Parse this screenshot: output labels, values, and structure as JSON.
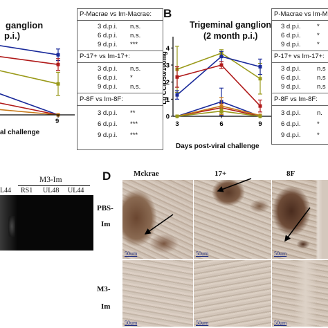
{
  "panelA": {
    "title_line1": "ganglion",
    "title_line2": "p.i.)",
    "xtick": "9",
    "xlabel": "al challenge",
    "stats": {
      "header1": "P-Macrae vs Im-Macrae:",
      "g1": [
        [
          "3 d.p.i.",
          "n.s."
        ],
        [
          "6 d.p.i.",
          "n.s."
        ],
        [
          "9 d.p.i.",
          "***"
        ]
      ],
      "header2": "P-17+ vs Im-17+:",
      "g2": [
        [
          "3 d.p.i.",
          "n.s."
        ],
        [
          "6 d.p.i.",
          "*"
        ],
        [
          "9 d.p.i.",
          "n.s."
        ]
      ],
      "header3": "P-8F vs Im-8F:",
      "g3": [
        [
          "3 d.p.i.",
          "**"
        ],
        [
          "6 d.p.i.",
          "***"
        ],
        [
          "9 d.p.i.",
          "***"
        ]
      ]
    }
  },
  "panelB": {
    "letter": "B",
    "title_line1": "Trigeminal ganglion",
    "title_line2": "(2 month p.i.)",
    "ylabel": "Lg CCID50/100mg",
    "xlabel": "Days post-viral challenge",
    "stats": {
      "header1": "P-Macrae vs Im-Maci",
      "g1": [
        [
          "3 d.p.i.",
          "*"
        ],
        [
          "6 d.p.i.",
          "*"
        ],
        [
          "9 d.p.i.",
          "*"
        ]
      ],
      "header2": "P-17+ vs Im-17+:",
      "g2": [
        [
          "3 d.p.i.",
          "n.s"
        ],
        [
          "6 d.p.i.",
          "n.s"
        ],
        [
          "9 d.p.i.",
          "n.s"
        ]
      ],
      "header3": "P-8F vs Im-8F:",
      "g3": [
        [
          "3 d.p.i.",
          "n."
        ],
        [
          "6 d.p.i.",
          "*"
        ],
        [
          "9 d.p.i.",
          "*"
        ]
      ]
    }
  },
  "panelC": {
    "title": "M3-Im",
    "lane_left": "L44",
    "lanes": [
      "RS1",
      "UL48",
      "UL44"
    ]
  },
  "panelD": {
    "letter": "D",
    "cols": [
      "Mckrae",
      "17+",
      "8F"
    ],
    "row1": [
      "PBS-",
      "Im"
    ],
    "row2": [
      "M3-",
      "Im"
    ],
    "scale": "50um"
  },
  "chart_data": [
    {
      "type": "line",
      "panel": "B",
      "title": "Trigeminal ganglion (2 month p.i.)",
      "xlabel": "Days post-viral challenge",
      "ylabel": "Lg CCID50/100mg",
      "x": [
        3,
        6,
        9
      ],
      "ylim": [
        0,
        4.5
      ],
      "yticks": [
        0,
        1,
        2,
        3,
        4
      ],
      "series": [
        {
          "color": "#9a9a1a",
          "values": [
            2.75,
            3.7,
            2.2
          ],
          "err": [
            1.35,
            0.2,
            0.9
          ]
        },
        {
          "color": "#1a2a9a",
          "values": [
            1.25,
            3.5,
            2.9
          ],
          "err": [
            0.25,
            0.3,
            0.45
          ]
        },
        {
          "color": "#b01a1a",
          "values": [
            2.3,
            3.0,
            0.6
          ],
          "err": [
            0.6,
            0.2,
            0.35
          ]
        },
        {
          "color": "#b01a1a",
          "values": [
            0.0,
            0.5,
            0.0
          ],
          "err": [
            0,
            0.25,
            0
          ]
        },
        {
          "color": "#1a2a9a",
          "values": [
            0.0,
            0.85,
            0.0
          ],
          "err": [
            0,
            0.8,
            0
          ]
        },
        {
          "color": "#c87a1a",
          "values": [
            0.0,
            0.6,
            0.05
          ],
          "err": [
            0,
            0.5,
            0
          ]
        },
        {
          "color": "#9a9a1a",
          "values": [
            0.0,
            0.3,
            0.0
          ],
          "err": [
            0,
            0.15,
            0
          ]
        }
      ]
    },
    {
      "type": "line",
      "panel": "A",
      "x": [
        6,
        9
      ],
      "ylim": [
        0,
        4.5
      ],
      "series": [
        {
          "color": "#1a2a9a",
          "values": [
            3.8,
            3.1
          ],
          "err": [
            0.3,
            0.3
          ]
        },
        {
          "color": "#b01a1a",
          "values": [
            3.2,
            2.6
          ],
          "err": [
            0.2,
            0.3
          ]
        },
        {
          "color": "#9a9a1a",
          "values": [
            2.6,
            1.6
          ],
          "err": [
            0.3,
            0.6
          ]
        },
        {
          "color": "#1a2a9a",
          "values": [
            1.6,
            0.0
          ],
          "err": [
            0,
            0
          ]
        },
        {
          "color": "#b01a1a",
          "values": [
            0.9,
            0.0
          ],
          "err": [
            0,
            0
          ]
        },
        {
          "color": "#c87a1a",
          "values": [
            0.4,
            0.0
          ],
          "err": [
            0,
            0
          ]
        }
      ]
    }
  ]
}
